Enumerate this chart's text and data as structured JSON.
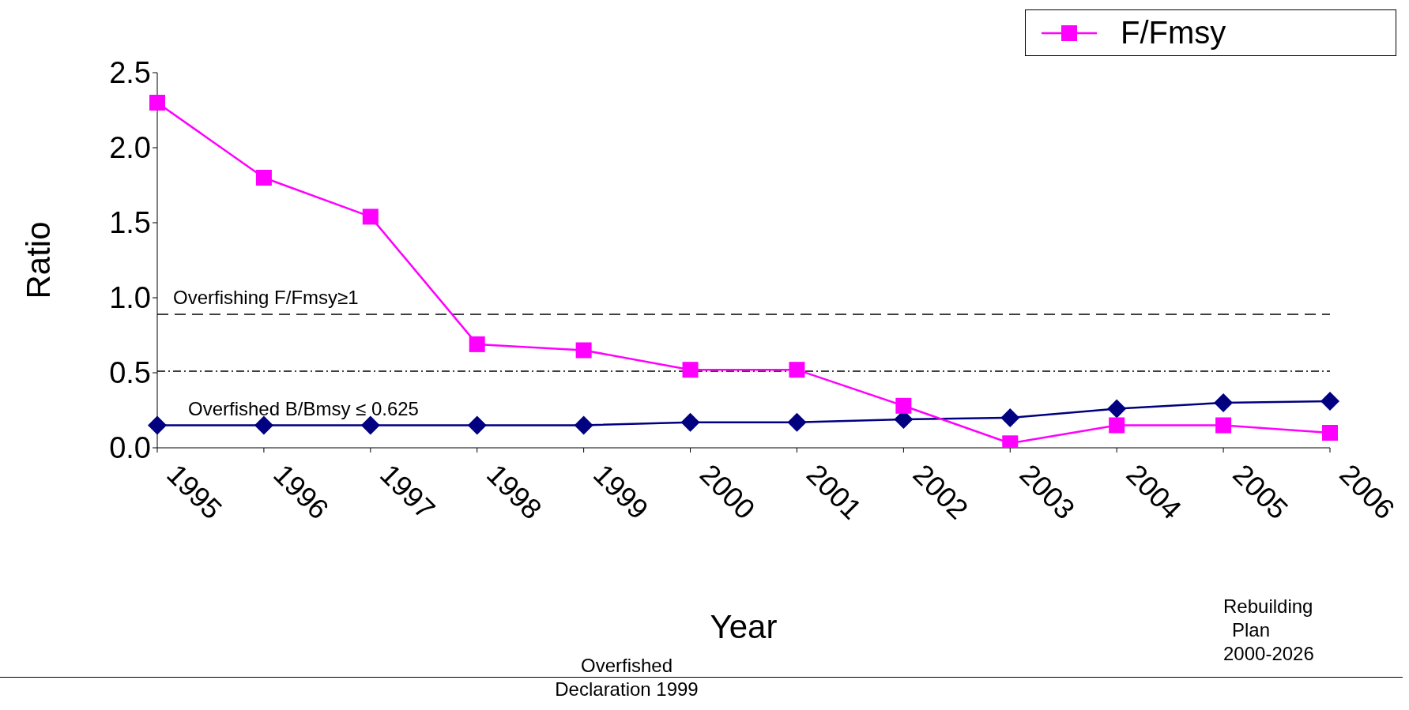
{
  "chart_data": {
    "type": "line",
    "xlabel": "Year",
    "ylabel": "Ratio",
    "categories": [
      "1995",
      "1996",
      "1997",
      "1998",
      "1999",
      "2000",
      "2001",
      "2002",
      "2003",
      "2004",
      "2005",
      "2006"
    ],
    "series": [
      {
        "color": "#000080",
        "marker": "diamond",
        "values": [
          0.15,
          0.15,
          0.15,
          0.15,
          0.15,
          0.17,
          0.17,
          0.19,
          0.2,
          0.26,
          0.3,
          0.31
        ]
      },
      {
        "name": "F/Fmsy",
        "color": "#ff00ff",
        "marker": "square",
        "values": [
          2.3,
          1.8,
          1.54,
          0.69,
          0.65,
          0.52,
          0.52,
          0.28,
          0.03,
          0.15,
          0.15,
          0.1
        ]
      }
    ],
    "ylim": [
      0,
      2.5
    ],
    "yticks": [
      {
        "value": 0,
        "label": "0.0"
      },
      {
        "value": 0.5,
        "label": "0.5"
      },
      {
        "value": 1,
        "label": "1.0"
      },
      {
        "value": 1.5,
        "label": "1.5"
      },
      {
        "value": 2,
        "label": "2.0"
      },
      {
        "value": 2.5,
        "label": "2.5"
      }
    ],
    "grid": false,
    "legend": "top right",
    "line_style": "solid",
    "ref_lines": [
      {
        "axis": "y",
        "value": 0.89,
        "label": "Overfishing F/Fmsy≥1",
        "color": "#000000",
        "line_style": "dashed"
      },
      {
        "axis": "y",
        "value": 0.51,
        "color": "#000000",
        "line_style": "dotted"
      }
    ],
    "annotations": [
      "Overfished B/Bmsy ≤ 0.625",
      "Overfished Declaration 1999",
      "Rebuilding Plan 2000-2026"
    ]
  }
}
